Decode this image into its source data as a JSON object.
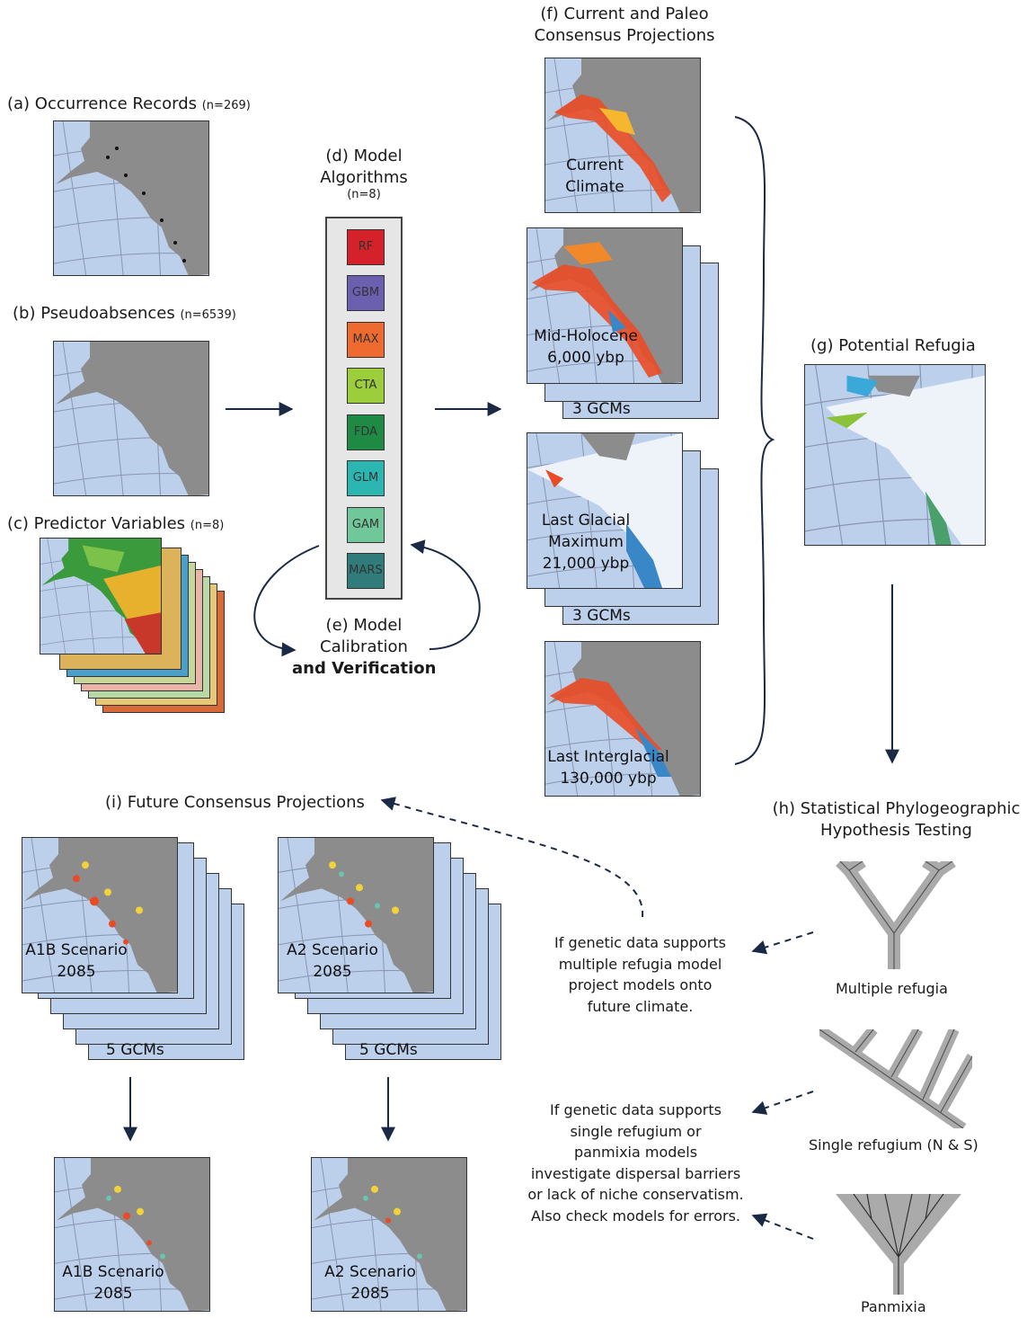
{
  "panel_a": {
    "title": "(a) Occurrence Records",
    "count": "(n=269)"
  },
  "panel_b": {
    "title": "(b) Pseudoabsences",
    "count": "(n=6539)"
  },
  "panel_c": {
    "title": "(c) Predictor Variables",
    "count": "(n=8)"
  },
  "panel_d": {
    "line1": "(d) Model",
    "line2": "Algorithms",
    "count": "(n=8)",
    "algorithms": [
      {
        "label": "RF",
        "color": "#d5222a"
      },
      {
        "label": "GBM",
        "color": "#6b5fb0"
      },
      {
        "label": "MAX",
        "color": "#ef6a2f"
      },
      {
        "label": "CTA",
        "color": "#9ccd3a"
      },
      {
        "label": "FDA",
        "color": "#1f8a43"
      },
      {
        "label": "GLM",
        "color": "#2bb6b2"
      },
      {
        "label": "GAM",
        "color": "#6fc79a"
      },
      {
        "label": "MARS",
        "color": "#2f7c7a"
      }
    ]
  },
  "panel_e": {
    "line1": "(e) Model",
    "line2": "Calibration",
    "line3": "and Verification"
  },
  "panel_f": {
    "line1": "(f) Current and Paleo",
    "line2": "Consensus Projections",
    "current": {
      "line1": "Current",
      "line2": "Climate"
    },
    "holocene": {
      "line1": "Mid-Holocene",
      "line2": "6,000 ybp",
      "gcms": "3 GCMs"
    },
    "lgm": {
      "line1": "Last Glacial",
      "line2": "Maximum",
      "line3": "21,000 ybp",
      "gcms": "3 GCMs"
    },
    "lig": {
      "line1": "Last Interglacial",
      "line2": "130,000 ybp"
    }
  },
  "panel_g": {
    "title": "(g) Potential Refugia"
  },
  "panel_h": {
    "line1": "(h) Statistical Phylogeographic",
    "line2": "Hypothesis Testing",
    "trees": [
      "Multiple refugia",
      "Single refugium (N & S)",
      "Panmixia"
    ]
  },
  "panel_i": {
    "title": "(i) Future Consensus Projections",
    "a1b": {
      "line1": "A1B Scenario",
      "line2": "2085",
      "gcms": "5 GCMs"
    },
    "a2": {
      "line1": "A2 Scenario",
      "line2": "2085",
      "gcms": "5 GCMs"
    },
    "a1b_final": {
      "line1": "A1B Scenario",
      "line2": "2085"
    },
    "a2_final": {
      "line1": "A2 Scenario",
      "line2": "2085"
    }
  },
  "note1": [
    "If genetic data supports",
    "multiple refugia model",
    "project models onto",
    "future climate."
  ],
  "note2": [
    "If genetic data supports",
    "single refugium or",
    "panmixia models",
    "investigate dispersal barriers",
    "or lack of niche conservatism.",
    "Also check models for errors."
  ],
  "colors": {
    "ocean": "#bcd0ec",
    "land": "#8c8c8c",
    "ice": "#eef3fa",
    "arrow": "#1a2a44"
  }
}
